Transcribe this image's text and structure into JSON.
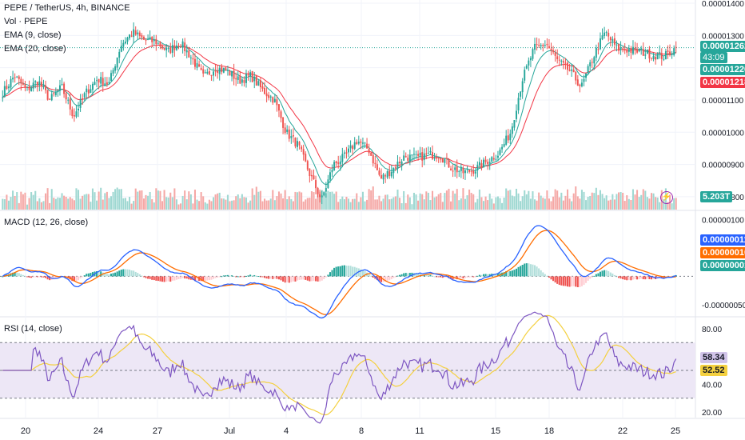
{
  "legends": {
    "main_title": "PEPE / TetherUS, 4h, BINANCE",
    "vol": "Vol · PEPE",
    "ema9": "EMA (9, close)",
    "ema20": "EMA (20, close)",
    "macd": "MACD (12, 26, close)",
    "rsi": "RSI (14, close)"
  },
  "badges": {
    "price": "0.00001262",
    "countdown": "43:09",
    "ema9": "0.00001226",
    "ema20": "0.00001218",
    "volume": "5.203T",
    "macd_line": "0.00000011",
    "macd_signal": "0.00000010",
    "macd_hist": "0.00000001",
    "rsi": "58.34",
    "rsi_ma": "52.52"
  },
  "colors": {
    "up": "#26a69a",
    "down": "#ef5350",
    "up_vol": "#9fd8d2",
    "down_vol": "#f5a8a6",
    "ema9": "#26a69a",
    "ema20": "#f23645",
    "macd_line": "#2962ff",
    "macd_signal": "#ff6d00",
    "rsi_line": "#7e57c2",
    "rsi_ma": "#f4d03f",
    "rsi_band": "#ede7f6",
    "price_line": "#26a69a"
  },
  "chart_data": [
    {
      "type": "candlestick",
      "title": "PEPE / TetherUS, 4h, BINANCE",
      "x_ticks": [
        "20",
        "24",
        "27",
        "Jul",
        "4",
        "8",
        "11",
        "15",
        "18",
        "22",
        "25"
      ],
      "y_ticks": [
        "0.00001400",
        "0.00001300",
        "0.00001200",
        "0.00001100",
        "0.00001000",
        "0.00000900",
        "0.00000800"
      ],
      "ylim": [
        7.6e-06,
        1.41e-05
      ],
      "series": [
        {
          "name": "EMA (9, close)",
          "last": 1.226e-05
        },
        {
          "name": "EMA (20, close)",
          "last": 1.218e-05
        }
      ],
      "current_price": 1.262e-05,
      "close_path": [
        1.122,
        1.175,
        1.13,
        1.16,
        1.1,
        1.14,
        1.05,
        1.12,
        1.165,
        1.15,
        1.27,
        1.31,
        1.285,
        1.28,
        1.25,
        1.28,
        1.23,
        1.17,
        1.2,
        1.19,
        1.16,
        1.175,
        1.13,
        1.1,
        1.0,
        0.96,
        0.87,
        0.79,
        0.9,
        0.925,
        0.975,
        0.945,
        0.855,
        0.885,
        0.925,
        0.92,
        0.93,
        0.93,
        0.89,
        0.875,
        0.885,
        0.91,
        0.935,
        1.0,
        1.165,
        1.26,
        1.275,
        1.22,
        1.19,
        1.14,
        1.235,
        1.31,
        1.26,
        1.255,
        1.25,
        1.24,
        1.235,
        1.262
      ],
      "grid": true
    },
    {
      "type": "bar",
      "title": "Vol · PEPE",
      "last": "5.203T"
    },
    {
      "type": "line",
      "title": "MACD (12, 26, close)",
      "y_ticks": [
        "0.00000100",
        "-0.00000050"
      ],
      "ylim": [
        -7e-07,
        1.15e-06
      ],
      "series": [
        {
          "name": "MACD",
          "last": 1.1e-07
        },
        {
          "name": "Signal",
          "last": 1e-07
        },
        {
          "name": "Histogram",
          "last": 1e-08
        }
      ]
    },
    {
      "type": "line",
      "title": "RSI (14, close)",
      "y_ticks": [
        "80.00",
        "40.00",
        "20.00"
      ],
      "ylim": [
        16,
        88
      ],
      "bands": [
        30,
        50,
        70
      ],
      "series": [
        {
          "name": "RSI",
          "last": 58.34
        },
        {
          "name": "RSI MA",
          "last": 52.52
        }
      ]
    }
  ]
}
